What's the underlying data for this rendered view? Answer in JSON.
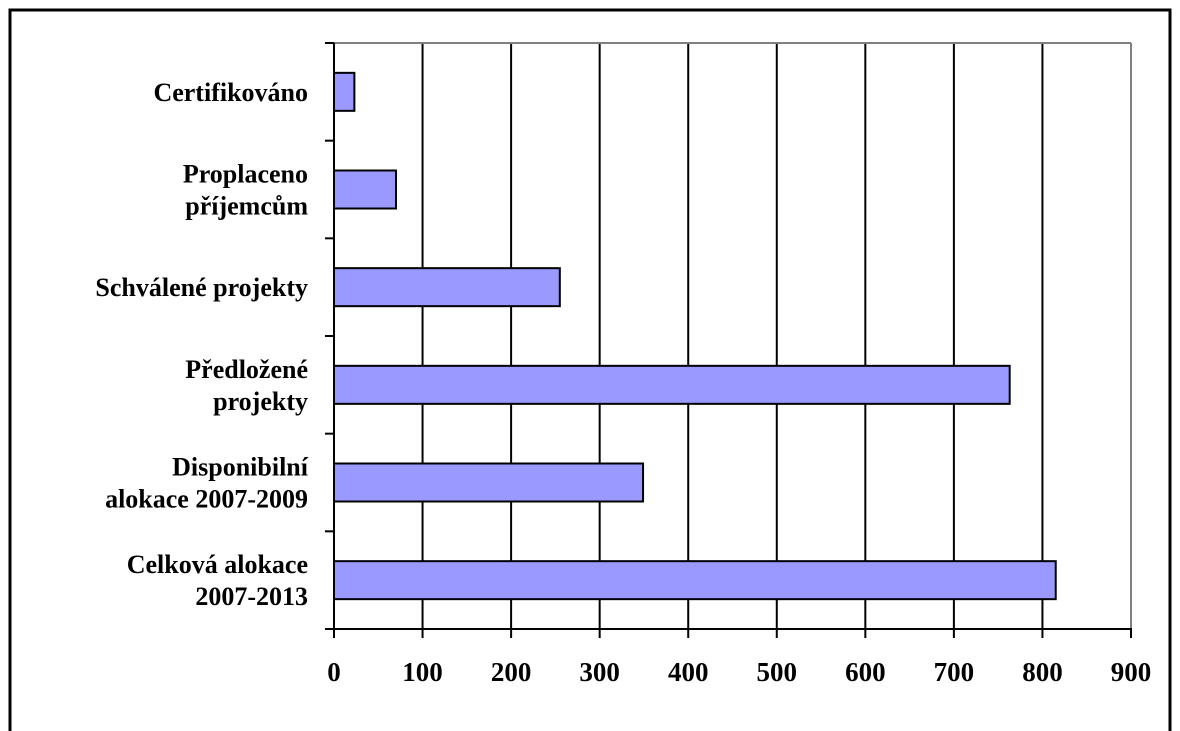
{
  "chart_data": {
    "type": "bar",
    "orientation": "horizontal",
    "categories": [
      [
        "Celková alokace",
        "2007-2013"
      ],
      [
        "Disponibilní",
        "alokace 2007-2009"
      ],
      [
        "Předložené",
        "projekty"
      ],
      [
        "Schválené projekty"
      ],
      [
        "Proplaceno",
        "příjemcům"
      ],
      [
        "Certifikováno"
      ]
    ],
    "values": [
      815,
      349,
      763,
      255,
      70,
      23
    ],
    "xlim": [
      0,
      900
    ],
    "xticks": [
      "0",
      "100",
      "200",
      "300",
      "400",
      "500",
      "600",
      "700",
      "800",
      "900"
    ],
    "grid": "vertical",
    "legend": "none",
    "colors": {
      "bar_fill": "#9999ff",
      "bar_stroke": "#000000",
      "grid": "#000000",
      "axis": "#000000",
      "frame": "#808080",
      "border": "#000000"
    }
  }
}
